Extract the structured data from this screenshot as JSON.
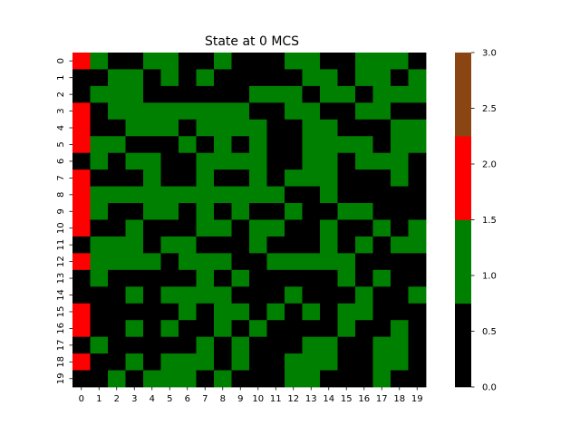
{
  "chart_data": {
    "type": "heatmap",
    "title": "State at 0 MCS",
    "xlabel": "",
    "ylabel": "",
    "x_ticks": [
      "0",
      "1",
      "2",
      "3",
      "4",
      "5",
      "6",
      "7",
      "8",
      "9",
      "10",
      "11",
      "12",
      "13",
      "14",
      "15",
      "16",
      "17",
      "18",
      "19"
    ],
    "y_ticks": [
      "0",
      "1",
      "2",
      "3",
      "4",
      "5",
      "6",
      "7",
      "8",
      "9",
      "10",
      "11",
      "12",
      "13",
      "14",
      "15",
      "16",
      "17",
      "18",
      "19"
    ],
    "colorbar": {
      "ticks": [
        "0.0",
        "0.5",
        "1.0",
        "1.5",
        "2.0",
        "2.5",
        "3.0"
      ],
      "range": [
        0,
        3
      ],
      "levels": [
        {
          "value": 0,
          "color": "#000000"
        },
        {
          "value": 1,
          "color": "#008000"
        },
        {
          "value": 2,
          "color": "#ff0000"
        },
        {
          "value": 3,
          "color": "#8b4513"
        }
      ]
    },
    "grid": false,
    "values": [
      [
        2,
        1,
        0,
        0,
        1,
        1,
        0,
        0,
        1,
        0,
        0,
        0,
        1,
        1,
        0,
        0,
        1,
        1,
        1,
        0
      ],
      [
        0,
        0,
        1,
        1,
        0,
        1,
        0,
        1,
        0,
        0,
        0,
        0,
        0,
        1,
        1,
        0,
        1,
        1,
        0,
        1
      ],
      [
        0,
        1,
        1,
        1,
        0,
        0,
        0,
        0,
        0,
        0,
        1,
        1,
        1,
        0,
        1,
        1,
        0,
        1,
        1,
        1
      ],
      [
        2,
        0,
        1,
        1,
        1,
        1,
        1,
        1,
        1,
        1,
        0,
        0,
        1,
        1,
        0,
        0,
        1,
        1,
        0,
        0
      ],
      [
        2,
        0,
        0,
        1,
        1,
        1,
        0,
        1,
        1,
        1,
        1,
        0,
        0,
        1,
        1,
        0,
        0,
        0,
        1,
        1
      ],
      [
        2,
        1,
        1,
        0,
        0,
        0,
        1,
        0,
        1,
        0,
        1,
        0,
        0,
        1,
        1,
        1,
        1,
        0,
        1,
        1
      ],
      [
        0,
        1,
        0,
        1,
        1,
        0,
        0,
        1,
        1,
        1,
        1,
        0,
        0,
        1,
        1,
        0,
        1,
        1,
        1,
        0
      ],
      [
        2,
        0,
        0,
        0,
        1,
        0,
        0,
        1,
        0,
        0,
        1,
        0,
        1,
        1,
        1,
        0,
        0,
        0,
        1,
        0
      ],
      [
        2,
        1,
        1,
        1,
        1,
        1,
        1,
        1,
        1,
        1,
        1,
        1,
        0,
        0,
        1,
        0,
        0,
        0,
        0,
        0
      ],
      [
        2,
        1,
        0,
        0,
        1,
        1,
        0,
        1,
        0,
        1,
        0,
        0,
        1,
        0,
        0,
        1,
        1,
        0,
        0,
        0
      ],
      [
        2,
        0,
        0,
        1,
        0,
        0,
        0,
        1,
        1,
        0,
        1,
        1,
        0,
        0,
        1,
        0,
        0,
        1,
        0,
        1
      ],
      [
        0,
        1,
        1,
        1,
        0,
        1,
        1,
        0,
        0,
        0,
        1,
        0,
        0,
        0,
        1,
        0,
        1,
        0,
        1,
        1
      ],
      [
        2,
        1,
        1,
        1,
        1,
        0,
        1,
        1,
        1,
        0,
        0,
        1,
        1,
        1,
        1,
        1,
        0,
        0,
        0,
        0
      ],
      [
        0,
        1,
        0,
        0,
        0,
        0,
        0,
        1,
        0,
        1,
        0,
        0,
        0,
        0,
        0,
        1,
        0,
        1,
        0,
        0
      ],
      [
        0,
        0,
        0,
        1,
        0,
        1,
        1,
        1,
        1,
        0,
        0,
        0,
        1,
        0,
        0,
        0,
        1,
        0,
        0,
        1
      ],
      [
        2,
        0,
        0,
        0,
        0,
        0,
        1,
        0,
        1,
        1,
        0,
        1,
        0,
        1,
        0,
        1,
        1,
        0,
        0,
        0
      ],
      [
        2,
        0,
        0,
        1,
        0,
        1,
        0,
        0,
        1,
        0,
        1,
        0,
        0,
        0,
        0,
        1,
        0,
        0,
        1,
        0
      ],
      [
        0,
        1,
        0,
        0,
        0,
        0,
        0,
        1,
        0,
        1,
        0,
        0,
        0,
        1,
        1,
        0,
        0,
        1,
        1,
        0
      ],
      [
        2,
        0,
        0,
        1,
        0,
        1,
        1,
        1,
        0,
        1,
        0,
        0,
        1,
        1,
        1,
        0,
        0,
        1,
        1,
        0
      ],
      [
        0,
        0,
        1,
        0,
        1,
        1,
        1,
        0,
        1,
        0,
        0,
        0,
        1,
        1,
        0,
        0,
        0,
        1,
        0,
        0
      ]
    ]
  }
}
